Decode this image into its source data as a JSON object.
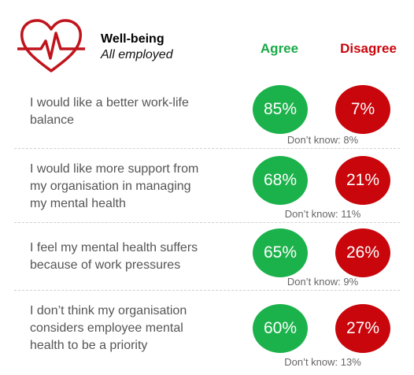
{
  "header": {
    "title": "Well-being",
    "subtitle": "All employed",
    "icon": "heart-pulse-icon",
    "icon_color": "#c0141c"
  },
  "columns": {
    "agree_label": "Agree",
    "disagree_label": "Disagree",
    "agree_color": "#1cb24b",
    "disagree_color": "#c8060c",
    "agree_header_color": "#1aa847",
    "disagree_header_color": "#c8060c"
  },
  "chart_data": {
    "type": "table",
    "columns": [
      "Agree",
      "Disagree",
      "Don't know"
    ],
    "rows": [
      {
        "statement": "I would like a better work-life balance",
        "lines": [
          "I would like a better work-life",
          "balance"
        ],
        "agree": 85,
        "disagree": 7,
        "dont_know": 8,
        "agree_label": "85%",
        "disagree_label": "7%",
        "dont_know_label": "Don’t know: 8%"
      },
      {
        "statement": "I would like more support from my organisation in managing my mental health",
        "lines": [
          "I would like more support from",
          "my organisation in managing",
          "my mental health"
        ],
        "agree": 68,
        "disagree": 21,
        "dont_know": 11,
        "agree_label": "68%",
        "disagree_label": "21%",
        "dont_know_label": "Don’t know: 11%"
      },
      {
        "statement": "I feel my mental health suffers because of work pressures",
        "lines": [
          "I feel my mental health suffers",
          "because of work pressures"
        ],
        "agree": 65,
        "disagree": 26,
        "dont_know": 9,
        "agree_label": "65%",
        "disagree_label": "26%",
        "dont_know_label": "Don’t know: 9%"
      },
      {
        "statement": "I don’t think my organisation considers employee mental health to be a priority",
        "lines": [
          "I don’t think my organisation",
          "considers employee mental",
          "health to be a priority"
        ],
        "agree": 60,
        "disagree": 27,
        "dont_know": 13,
        "agree_label": "60%",
        "disagree_label": "27%",
        "dont_know_label": "Don’t know: 13%"
      }
    ]
  }
}
